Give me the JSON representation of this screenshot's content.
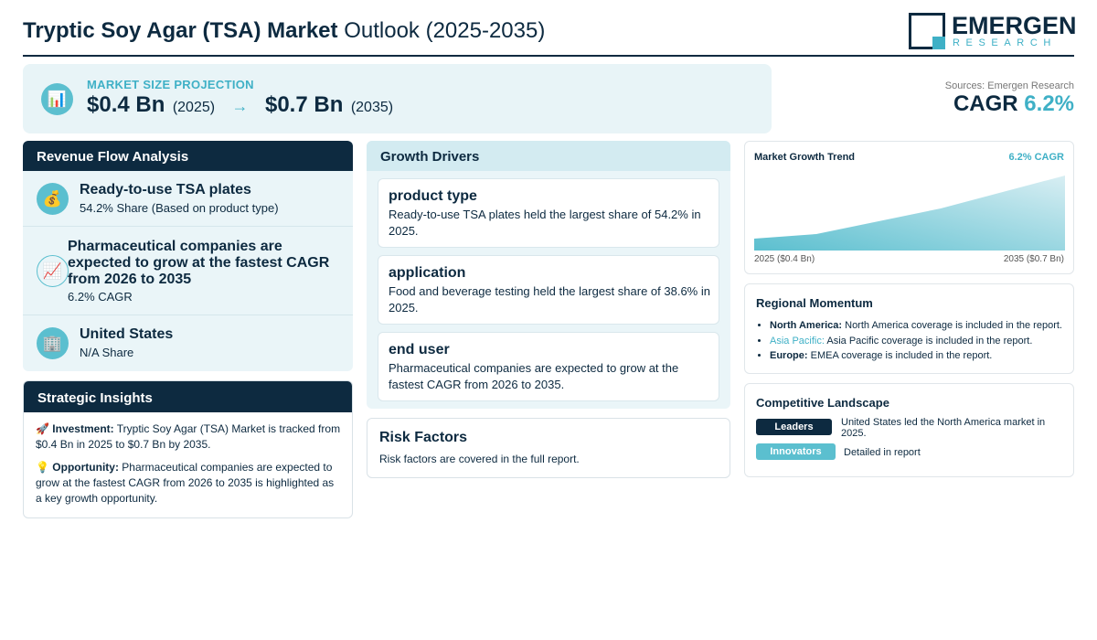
{
  "header": {
    "title_bold": "Tryptic Soy Agar (TSA) Market",
    "title_light": "Outlook (2025-2035)",
    "logo_name": "EMERGEN",
    "logo_sub": "RESEARCH"
  },
  "projection": {
    "label": "MARKET SIZE PROJECTION",
    "start_value": "$0.4 Bn",
    "start_year": "(2025)",
    "arrow": "→",
    "end_value": "$0.7 Bn",
    "end_year": "(2035)",
    "icon": "bar-chart-icon"
  },
  "sources": "Sources: Emergen Research",
  "cagr": {
    "label": "CAGR",
    "value": "6.2%"
  },
  "revenue_flow": {
    "title": "Revenue Flow Analysis",
    "items": [
      {
        "icon": "money-bag-icon",
        "title": "Ready-to-use TSA plates",
        "sub": "54.2% Share (Based on product type)"
      },
      {
        "icon": "trend-up-icon",
        "title": "Pharmaceutical companies are expected to grow at the fastest CAGR from 2026 to 2035",
        "sub": "6.2% CAGR"
      },
      {
        "icon": "building-icon",
        "title": "United States",
        "sub": "N/A Share"
      }
    ]
  },
  "insights": {
    "title": "Strategic Insights",
    "investment_label": "Investment:",
    "investment_text": "Tryptic Soy Agar (TSA) Market is tracked from $0.4 Bn in 2025 to $0.7 Bn by 2035.",
    "opportunity_label": "Opportunity:",
    "opportunity_text": "Pharmaceutical companies are expected to grow at the fastest CAGR from 2026 to 2035 is highlighted as a key growth opportunity."
  },
  "drivers": {
    "title": "Growth Drivers",
    "items": [
      {
        "title": "product type",
        "text": "Ready-to-use TSA plates held the largest share of 54.2% in 2025."
      },
      {
        "title": "application",
        "text": "Food and beverage testing held the largest share of 38.6% in 2025."
      },
      {
        "title": "end user",
        "text": "Pharmaceutical companies are expected to grow at the fastest CAGR from 2026 to 2035."
      }
    ]
  },
  "risk": {
    "title": "Risk Factors",
    "text": "Risk factors are covered in the full report."
  },
  "trend": {
    "title": "Market Growth Trend",
    "cagr": "6.2% CAGR",
    "start_label": "2025 ($0.4 Bn)",
    "end_label": "2035 ($0.7 Bn)",
    "colors": {
      "fill_top": "#5bbfcf",
      "fill_bottom": "#ffffff"
    }
  },
  "regional": {
    "title": "Regional Momentum",
    "items": [
      {
        "region": "North America:",
        "text": "North America coverage is included in the report."
      },
      {
        "region": "Asia Pacific:",
        "text": "Asia Pacific coverage is included in the report."
      },
      {
        "region": "Europe:",
        "text": "EMEA coverage is included in the report."
      }
    ]
  },
  "competitive": {
    "title": "Competitive Landscape",
    "leaders_label": "Leaders",
    "leaders_text": "United States led the North America market in 2025.",
    "innovators_label": "Innovators",
    "innovators_text": "Detailed in report"
  },
  "colors": {
    "navy": "#0d2a40",
    "teal": "#3fb0c6",
    "light_panel": "#eaf5f8"
  }
}
